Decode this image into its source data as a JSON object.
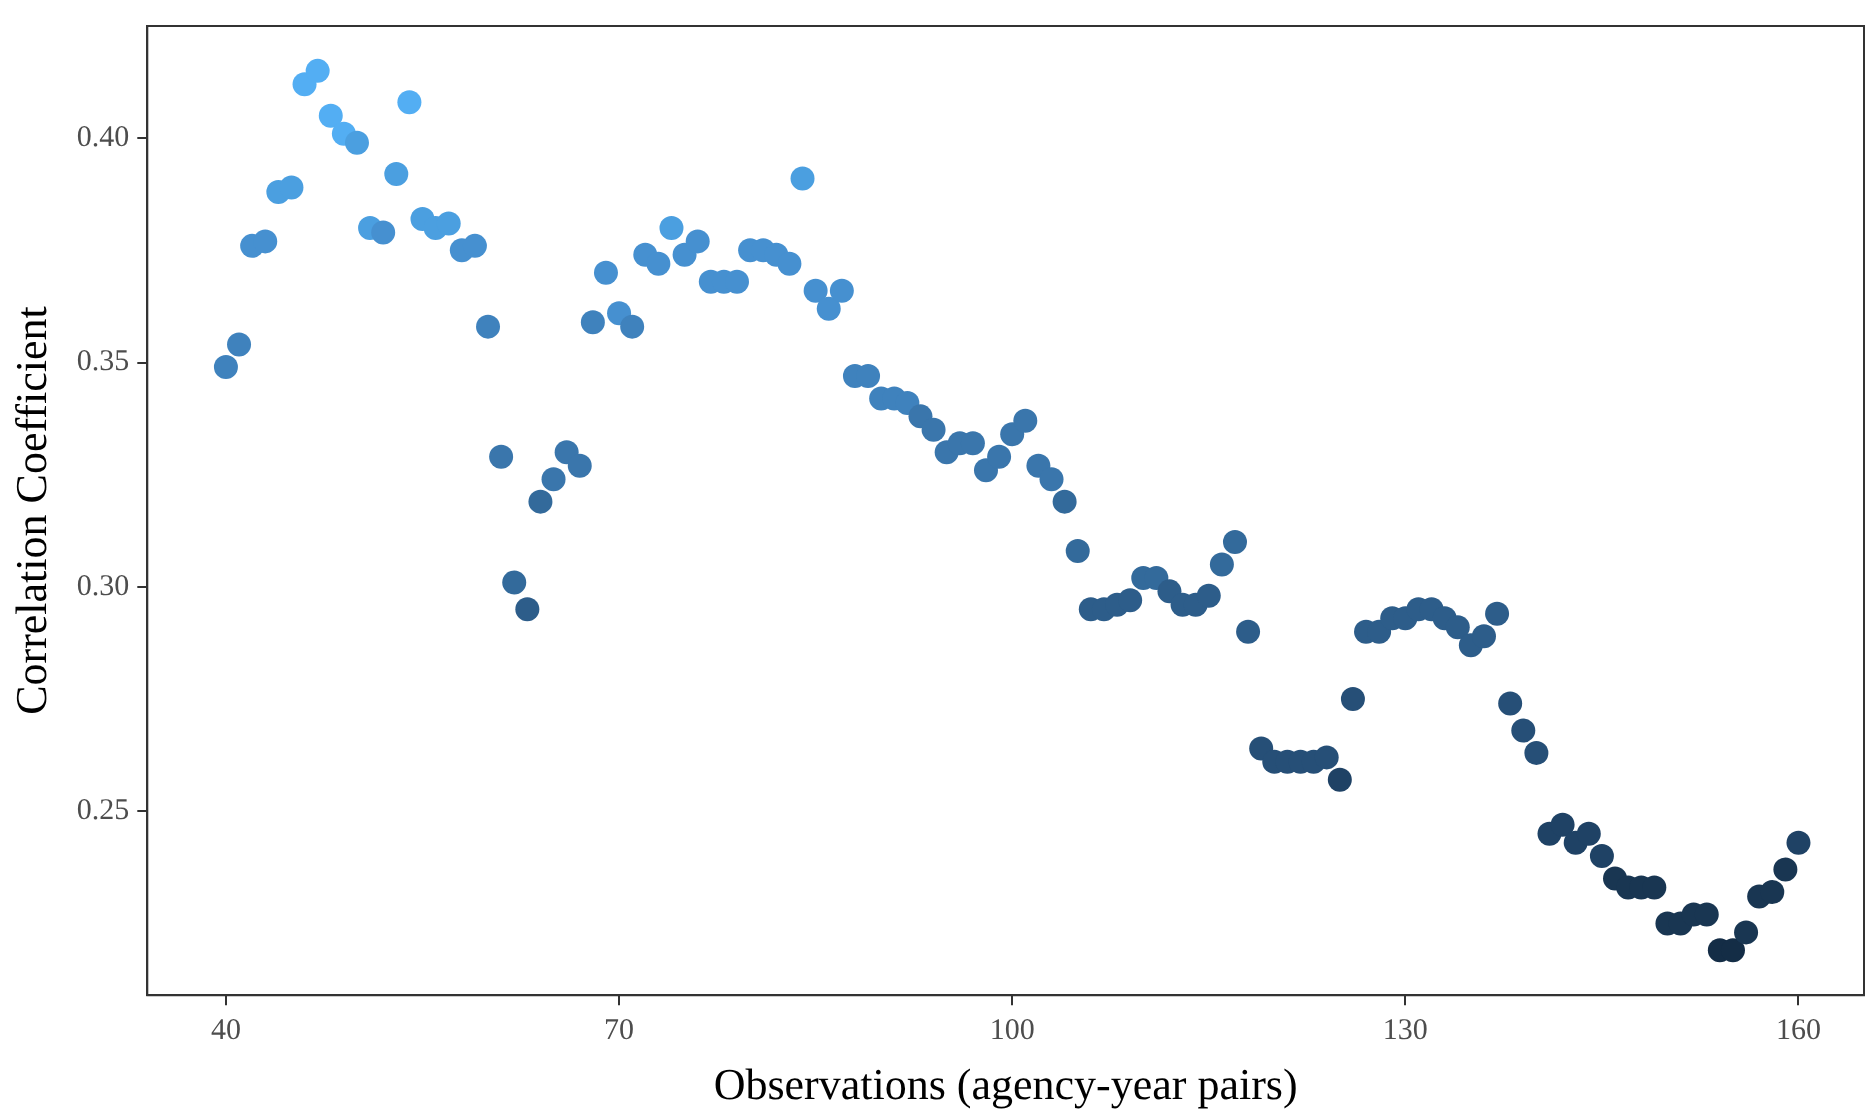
{
  "chart_data": {
    "type": "scatter",
    "xlabel": "Observations (agency-year pairs)",
    "ylabel": "Correlation Coefficient",
    "x": [
      40,
      41,
      42,
      43,
      44,
      45,
      46,
      47,
      48,
      49,
      50,
      51,
      52,
      53,
      54,
      55,
      56,
      57,
      58,
      59,
      60,
      61,
      62,
      63,
      64,
      65,
      66,
      67,
      68,
      69,
      70,
      71,
      72,
      73,
      74,
      75,
      76,
      77,
      78,
      79,
      80,
      81,
      82,
      83,
      84,
      85,
      86,
      87,
      88,
      89,
      90,
      91,
      92,
      93,
      94,
      95,
      96,
      97,
      98,
      99,
      100,
      101,
      102,
      103,
      104,
      105,
      106,
      107,
      108,
      109,
      110,
      111,
      112,
      113,
      114,
      115,
      116,
      117,
      118,
      119,
      120,
      121,
      122,
      123,
      124,
      125,
      126,
      127,
      128,
      129,
      130,
      131,
      132,
      133,
      134,
      135,
      136,
      137,
      138,
      139,
      140,
      141,
      142,
      143,
      144,
      145,
      146,
      147,
      148,
      149,
      150,
      151,
      152,
      153,
      154,
      155,
      156,
      157,
      158,
      159,
      160
    ],
    "values": [
      0.349,
      0.354,
      0.376,
      0.377,
      0.388,
      0.389,
      0.412,
      0.415,
      0.405,
      0.401,
      0.399,
      0.38,
      0.379,
      0.392,
      0.408,
      0.382,
      0.38,
      0.381,
      0.375,
      0.376,
      0.358,
      0.329,
      0.301,
      0.295,
      0.319,
      0.324,
      0.33,
      0.327,
      0.359,
      0.37,
      0.361,
      0.358,
      0.374,
      0.372,
      0.38,
      0.374,
      0.377,
      0.368,
      0.368,
      0.368,
      0.375,
      0.375,
      0.374,
      0.372,
      0.391,
      0.366,
      0.362,
      0.366,
      0.347,
      0.347,
      0.342,
      0.342,
      0.341,
      0.338,
      0.335,
      0.33,
      0.332,
      0.332,
      0.326,
      0.329,
      0.334,
      0.337,
      0.327,
      0.324,
      0.319,
      0.308,
      0.295,
      0.295,
      0.296,
      0.297,
      0.302,
      0.302,
      0.299,
      0.296,
      0.296,
      0.298,
      0.305,
      0.31,
      0.29,
      0.264,
      0.261,
      0.261,
      0.261,
      0.261,
      0.262,
      0.257,
      0.275,
      0.29,
      0.29,
      0.293,
      0.293,
      0.295,
      0.295,
      0.293,
      0.291,
      0.287,
      0.289,
      0.294,
      0.274,
      0.268,
      0.263,
      0.245,
      0.247,
      0.243,
      0.245,
      0.24,
      0.235,
      0.233,
      0.233,
      0.233,
      0.225,
      0.225,
      0.227,
      0.227,
      0.219,
      0.219,
      0.223,
      0.231,
      0.232,
      0.237,
      0.243
    ],
    "colors": [
      "#3f82bd",
      "#3f82bd",
      "#4690d0",
      "#4690d0",
      "#4b9fe0",
      "#4b9fe0",
      "#53aef3",
      "#53aef3",
      "#53aef3",
      "#53aef3",
      "#4b9fe0",
      "#4b9fe0",
      "#4690d0",
      "#4b9fe0",
      "#53aef3",
      "#4b9fe0",
      "#4b9fe0",
      "#4b9fe0",
      "#4690d0",
      "#4690d0",
      "#3f82bd",
      "#3a76ac",
      "#336a9b",
      "#2d5d8a",
      "#336a9b",
      "#3a76ac",
      "#3a76ac",
      "#3a76ac",
      "#3f82bd",
      "#4690d0",
      "#4690d0",
      "#3f82bd",
      "#4690d0",
      "#4690d0",
      "#4b9fe0",
      "#4690d0",
      "#4690d0",
      "#4690d0",
      "#4690d0",
      "#4690d0",
      "#4690d0",
      "#4690d0",
      "#4690d0",
      "#4690d0",
      "#4b9fe0",
      "#4690d0",
      "#4690d0",
      "#4690d0",
      "#3f82bd",
      "#3f82bd",
      "#3f82bd",
      "#3f82bd",
      "#3f82bd",
      "#3a76ac",
      "#3a76ac",
      "#3a76ac",
      "#3a76ac",
      "#3a76ac",
      "#3a76ac",
      "#3a76ac",
      "#3a76ac",
      "#3a76ac",
      "#3a76ac",
      "#3a76ac",
      "#336a9b",
      "#336a9b",
      "#2d5d8a",
      "#2d5d8a",
      "#2d5d8a",
      "#2d5d8a",
      "#336a9b",
      "#336a9b",
      "#2d5d8a",
      "#2d5d8a",
      "#2d5d8a",
      "#2d5d8a",
      "#336a9b",
      "#336a9b",
      "#2d5d8a",
      "#264f77",
      "#264f77",
      "#264f77",
      "#264f77",
      "#264f77",
      "#264f77",
      "#1f4265",
      "#264f77",
      "#2d5d8a",
      "#2d5d8a",
      "#2d5d8a",
      "#2d5d8a",
      "#2d5d8a",
      "#2d5d8a",
      "#2d5d8a",
      "#2d5d8a",
      "#2d5d8a",
      "#2d5d8a",
      "#2d5d8a",
      "#264f77",
      "#264f77",
      "#264f77",
      "#1f4265",
      "#1f4265",
      "#1f4265",
      "#1f4265",
      "#1f4265",
      "#193652",
      "#193652",
      "#193652",
      "#193652",
      "#193652",
      "#193652",
      "#193652",
      "#193652",
      "#142d46",
      "#142d46",
      "#193652",
      "#193652",
      "#193652",
      "#193652",
      "#1f4265"
    ],
    "xlim": [
      34,
      165
    ],
    "ylim": [
      0.209,
      0.425
    ],
    "xticks": [
      40,
      70,
      100,
      130,
      160
    ],
    "yticks": [
      0.25,
      {
        "value": 0.3,
        "label": "0.30"
      },
      0.35,
      {
        "value": 0.4,
        "label": "0.40"
      }
    ],
    "marker": "circle",
    "grid": false,
    "legend": false
  }
}
